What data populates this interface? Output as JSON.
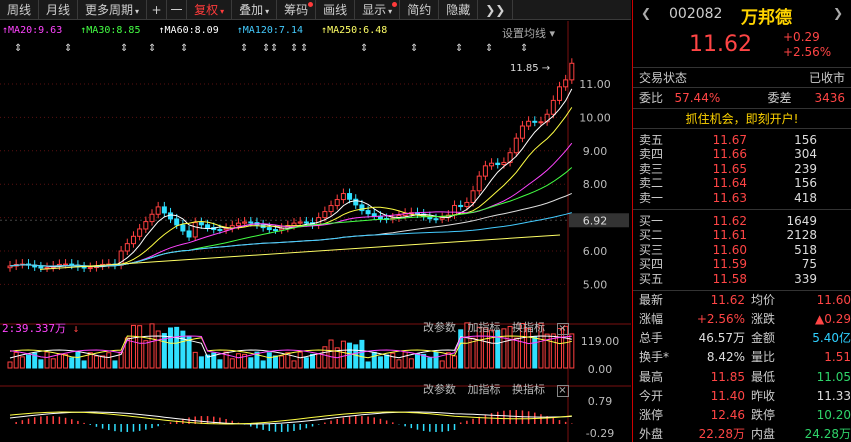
{
  "toolbar": {
    "items": [
      {
        "label": "周线"
      },
      {
        "label": "月线"
      },
      {
        "label": "更多周期",
        "caret": "▾"
      },
      {
        "label": "+"
      },
      {
        "label": "一"
      },
      {
        "label": "复权",
        "caret": "▾"
      },
      {
        "label": "叠加",
        "caret": "▾"
      },
      {
        "label": "筹码"
      },
      {
        "label": "画线"
      },
      {
        "label": "显示",
        "caret": "▾"
      },
      {
        "label": "简约"
      },
      {
        "label": "隐藏"
      },
      {
        "label": "❯❯"
      }
    ]
  },
  "legend": {
    "ma20": "MA20:9.63",
    "ma30": "MA30:8.85",
    "ma60": "MA60:8.09",
    "ma120": "MA120:7.14",
    "ma250": "MA250:6.48",
    "setting": "设置均线",
    "ma_colors": {
      "ma20": "#ff44ff",
      "ma30": "#44ff44",
      "ma60": "#ffffff",
      "ma120": "#44ccff",
      "ma250": "#ffff66"
    }
  },
  "price_axis": {
    "labels": [
      "11.00",
      "10.00",
      "9.00",
      "8.00",
      "7.00",
      "6.00",
      "5.00"
    ],
    "current_tag": "6.92",
    "high_marker": "11.85"
  },
  "volume_panel": {
    "label": "2:39.337万",
    "tools": [
      "改参数",
      "加指标",
      "换指标"
    ],
    "close": "×",
    "axis": [
      "119.00",
      "0.00"
    ]
  },
  "macd_panel": {
    "tools": [
      "改参数",
      "加指标",
      "换指标"
    ],
    "close": "×",
    "axis": [
      "0.79",
      "-0.29"
    ]
  },
  "stock": {
    "code": "002082",
    "name": "万邦德",
    "price": "11.62",
    "change": "+0.29",
    "change_pct": "+2.56%",
    "prev_arrow": "❮",
    "next_arrow": "❯"
  },
  "status": {
    "label": "交易状态",
    "value": "已收市"
  },
  "commission": {
    "ratio_label": "委比",
    "ratio": "57.44%",
    "diff_label": "委差",
    "diff": "3436"
  },
  "promo": "抓住机会，即刻开户!",
  "sell_orders": [
    {
      "label": "卖五",
      "price": "11.67",
      "vol": "156"
    },
    {
      "label": "卖四",
      "price": "11.66",
      "vol": "304"
    },
    {
      "label": "卖三",
      "price": "11.65",
      "vol": "239"
    },
    {
      "label": "卖二",
      "price": "11.64",
      "vol": "156"
    },
    {
      "label": "卖一",
      "price": "11.63",
      "vol": "418"
    }
  ],
  "buy_orders": [
    {
      "label": "买一",
      "price": "11.62",
      "vol": "1649"
    },
    {
      "label": "买二",
      "price": "11.61",
      "vol": "2128"
    },
    {
      "label": "买三",
      "price": "11.60",
      "vol": "518"
    },
    {
      "label": "买四",
      "price": "11.59",
      "vol": "75"
    },
    {
      "label": "买五",
      "price": "11.58",
      "vol": "339"
    }
  ],
  "quotes": [
    {
      "l1": "最新",
      "v1": "11.62",
      "c1": "red",
      "l2": "均价",
      "v2": "11.60",
      "c2": "red"
    },
    {
      "l1": "涨幅",
      "v1": "+2.56%",
      "c1": "red",
      "l2": "涨跌",
      "v2": "▲0.29",
      "c2": "red"
    },
    {
      "l1": "总手",
      "v1": "46.57万",
      "c1": "white",
      "l2": "金额",
      "v2": "5.40亿",
      "c2": "cyan"
    },
    {
      "l1": "换手*",
      "v1": "8.42%",
      "c1": "white",
      "l2": "量比",
      "v2": "1.51",
      "c2": "red"
    },
    {
      "l1": "最高",
      "v1": "11.85",
      "c1": "red",
      "l2": "最低",
      "v2": "11.05",
      "c2": "green"
    },
    {
      "l1": "今开",
      "v1": "11.40",
      "c1": "red",
      "l2": "昨收",
      "v2": "11.33",
      "c2": "white"
    },
    {
      "l1": "涨停",
      "v1": "12.46",
      "c1": "red",
      "l2": "跌停",
      "v2": "10.20",
      "c2": "green"
    },
    {
      "l1": "外盘",
      "v1": "22.28万",
      "c1": "red",
      "l2": "内盘",
      "v2": "24.28万",
      "c2": "green"
    }
  ]
}
